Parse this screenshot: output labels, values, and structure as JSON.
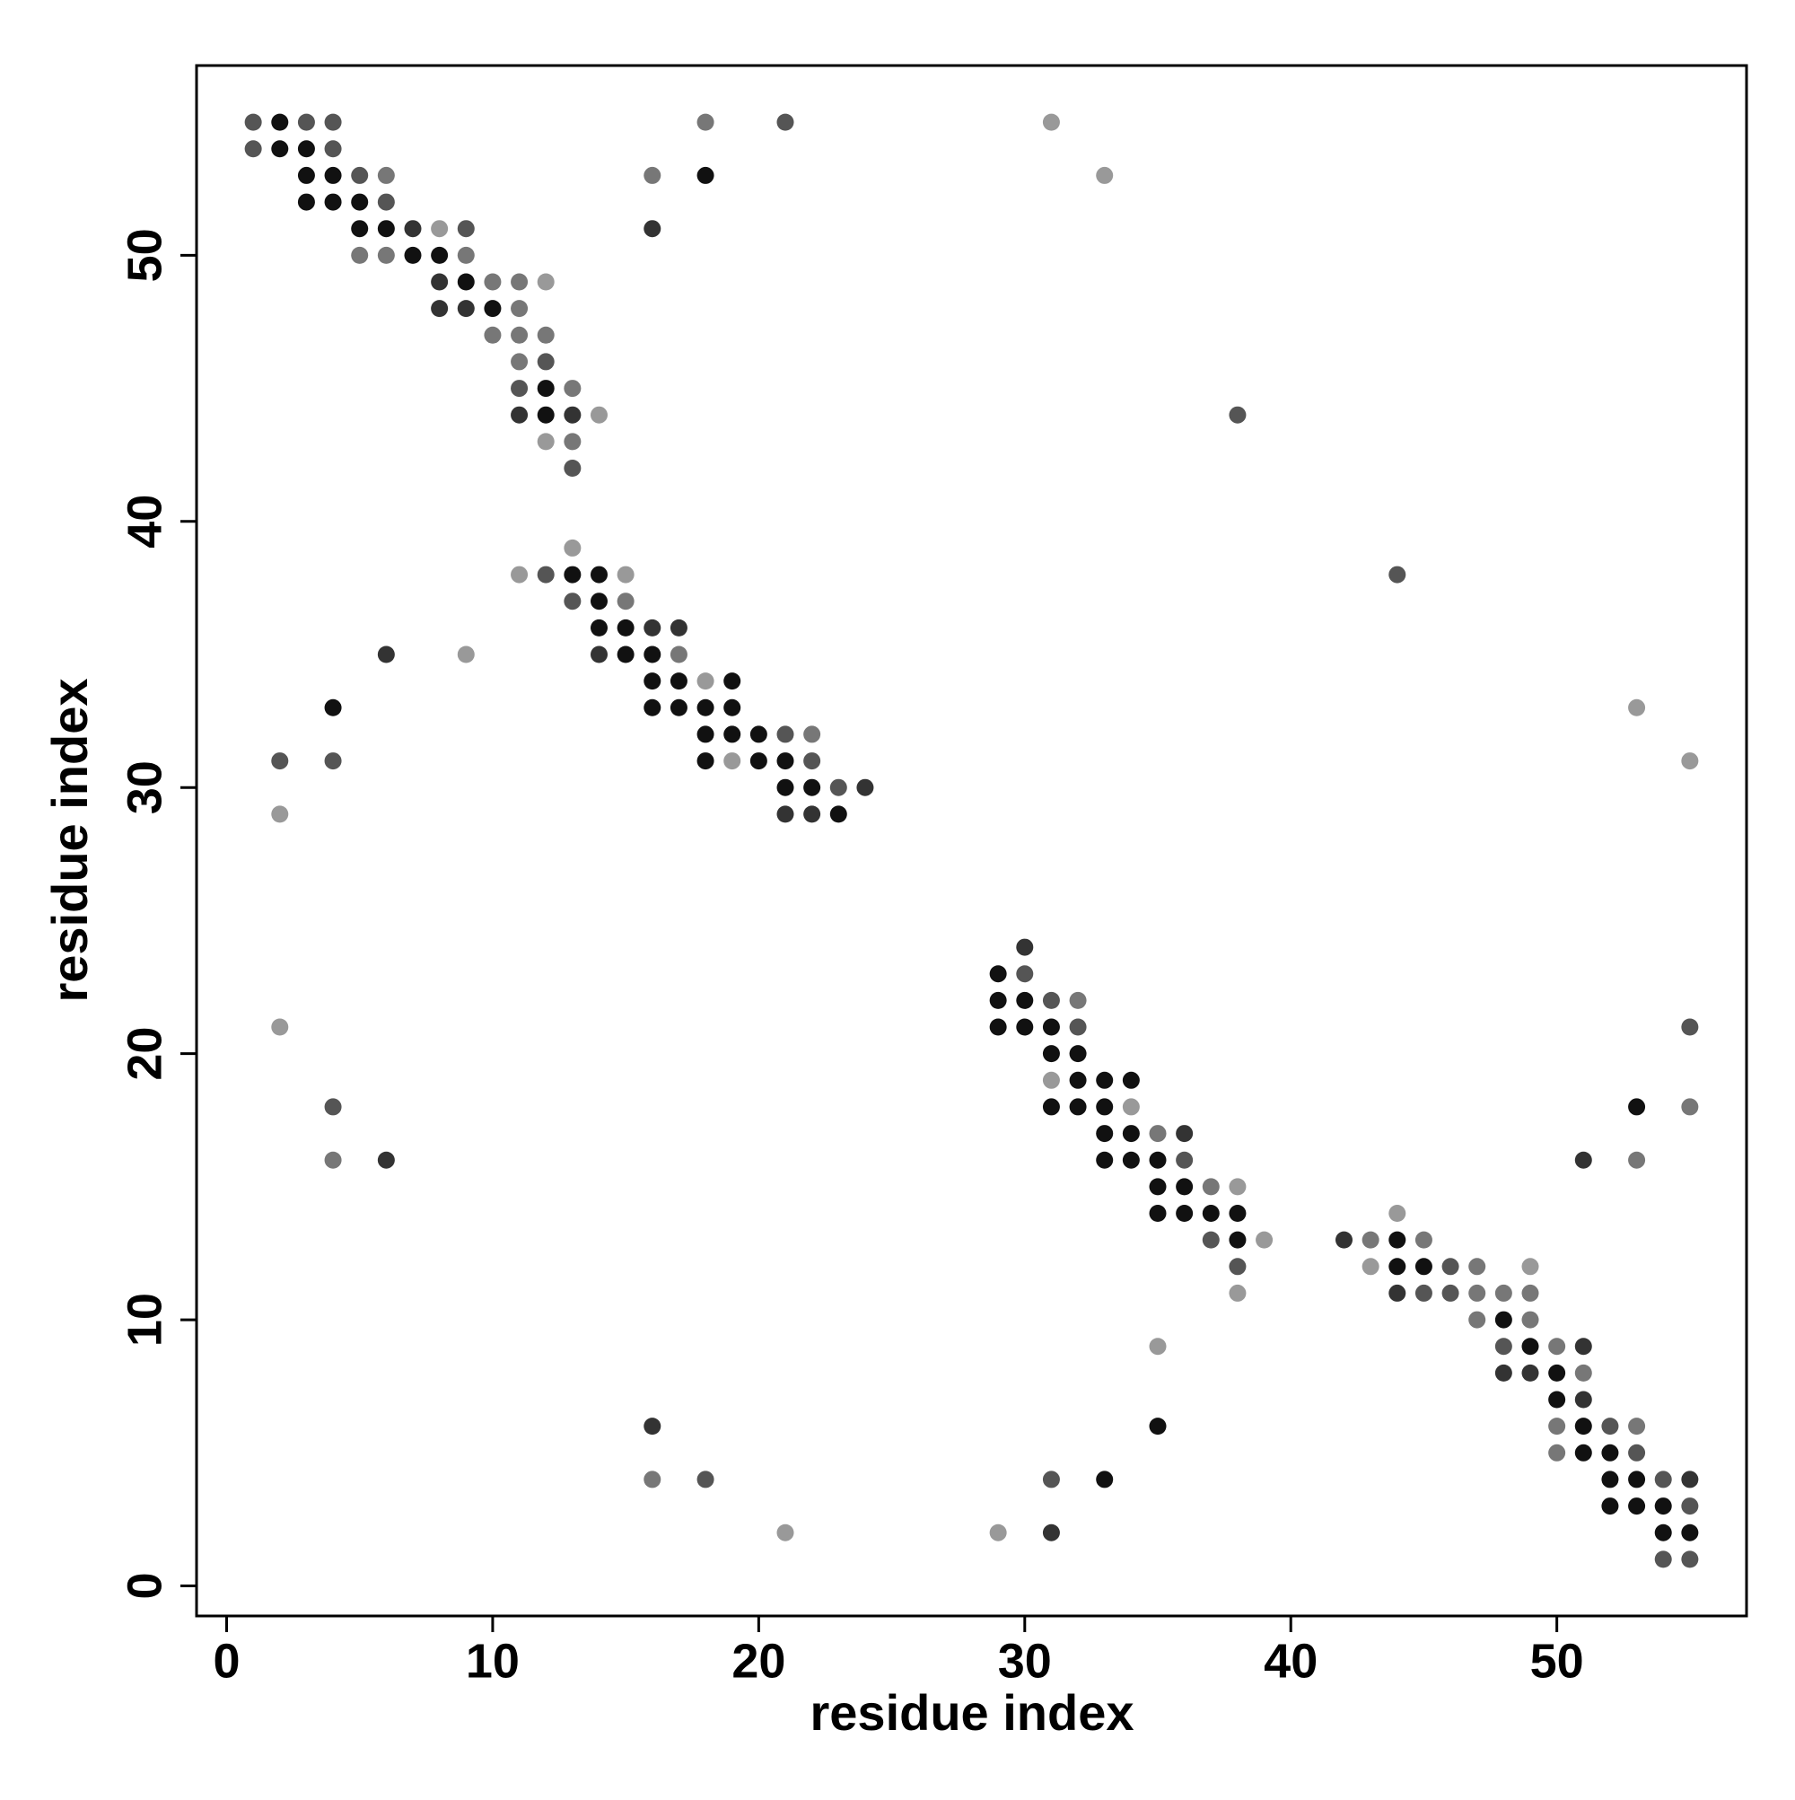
{
  "chart_data": {
    "type": "scatter",
    "xlabel": "residue index",
    "ylabel": "residue index",
    "xlim": [
      -1.13,
      57.13
    ],
    "ylim": [
      -1.13,
      57.13
    ],
    "xticks": [
      0,
      10,
      20,
      30,
      40,
      50
    ],
    "yticks": [
      0,
      10,
      20,
      30,
      40,
      50
    ],
    "x": [
      1,
      2,
      3,
      4,
      18,
      21,
      31,
      1,
      2,
      3,
      4,
      3,
      4,
      5,
      6,
      16,
      18,
      33,
      3,
      4,
      5,
      6,
      5,
      6,
      7,
      8,
      9,
      16,
      5,
      6,
      7,
      8,
      9,
      8,
      9,
      10,
      11,
      12,
      8,
      9,
      10,
      11,
      10,
      11,
      12,
      11,
      12,
      11,
      12,
      13,
      11,
      12,
      13,
      14,
      38,
      12,
      13,
      13,
      13,
      11,
      12,
      13,
      14,
      15,
      44,
      13,
      14,
      15,
      14,
      15,
      16,
      17,
      6,
      9,
      14,
      15,
      16,
      17,
      16,
      17,
      18,
      19,
      4,
      16,
      17,
      18,
      19,
      53,
      18,
      19,
      20,
      21,
      22,
      2,
      4,
      18,
      19,
      20,
      21,
      22,
      55,
      21,
      22,
      23,
      24,
      2,
      21,
      22,
      23,
      30,
      29,
      30,
      29,
      30,
      31,
      32,
      2,
      29,
      30,
      31,
      32,
      55,
      31,
      32,
      31,
      32,
      33,
      34,
      4,
      31,
      32,
      33,
      34,
      53,
      55,
      33,
      34,
      35,
      36,
      4,
      6,
      33,
      34,
      35,
      36,
      51,
      53,
      35,
      36,
      37,
      38,
      35,
      36,
      37,
      38,
      44,
      37,
      38,
      39,
      42,
      43,
      44,
      45,
      38,
      43,
      44,
      45,
      46,
      47,
      49,
      38,
      44,
      45,
      46,
      47,
      48,
      49,
      47,
      48,
      49,
      35,
      48,
      49,
      50,
      51,
      48,
      49,
      50,
      51,
      50,
      51,
      16,
      35,
      50,
      51,
      52,
      53,
      50,
      51,
      52,
      53,
      16,
      18,
      31,
      33,
      52,
      53,
      54,
      55,
      52,
      53,
      54,
      55,
      21,
      29,
      31,
      54,
      55,
      54,
      55
    ],
    "y": [
      55,
      55,
      55,
      55,
      55,
      55,
      55,
      54,
      54,
      54,
      54,
      53,
      53,
      53,
      53,
      53,
      53,
      53,
      52,
      52,
      52,
      52,
      51,
      51,
      51,
      51,
      51,
      51,
      50,
      50,
      50,
      50,
      50,
      49,
      49,
      49,
      49,
      49,
      48,
      48,
      48,
      48,
      47,
      47,
      47,
      46,
      46,
      45,
      45,
      45,
      44,
      44,
      44,
      44,
      44,
      43,
      43,
      42,
      39,
      38,
      38,
      38,
      38,
      38,
      38,
      37,
      37,
      37,
      36,
      36,
      36,
      36,
      35,
      35,
      35,
      35,
      35,
      35,
      34,
      34,
      34,
      34,
      33,
      33,
      33,
      33,
      33,
      33,
      32,
      32,
      32,
      32,
      32,
      31,
      31,
      31,
      31,
      31,
      31,
      31,
      31,
      30,
      30,
      30,
      30,
      29,
      29,
      29,
      29,
      24,
      23,
      23,
      22,
      22,
      22,
      22,
      21,
      21,
      21,
      21,
      21,
      21,
      20,
      20,
      19,
      19,
      19,
      19,
      18,
      18,
      18,
      18,
      18,
      18,
      18,
      17,
      17,
      17,
      17,
      16,
      16,
      16,
      16,
      16,
      16,
      16,
      16,
      15,
      15,
      15,
      15,
      14,
      14,
      14,
      14,
      14,
      13,
      13,
      13,
      13,
      13,
      13,
      13,
      12,
      12,
      12,
      12,
      12,
      12,
      12,
      11,
      11,
      11,
      11,
      11,
      11,
      11,
      10,
      10,
      10,
      9,
      9,
      9,
      9,
      9,
      8,
      8,
      8,
      8,
      7,
      7,
      6,
      6,
      6,
      6,
      6,
      6,
      5,
      5,
      5,
      5,
      4,
      4,
      4,
      4,
      4,
      4,
      4,
      4,
      3,
      3,
      3,
      3,
      2,
      2,
      2,
      2,
      2,
      1,
      1
    ],
    "colors": [
      "#555",
      "#111",
      "#555",
      "#555",
      "#777",
      "#555",
      "#999",
      "#555",
      "#111",
      "#111",
      "#555",
      "#111",
      "#111",
      "#555",
      "#777",
      "#777",
      "#111",
      "#999",
      "#111",
      "#111",
      "#111",
      "#555",
      "#111",
      "#111",
      "#333",
      "#999",
      "#555",
      "#333",
      "#777",
      "#777",
      "#111",
      "#111",
      "#777",
      "#333",
      "#111",
      "#777",
      "#777",
      "#999",
      "#333",
      "#333",
      "#111",
      "#777",
      "#777",
      "#777",
      "#777",
      "#777",
      "#555",
      "#555",
      "#111",
      "#777",
      "#333",
      "#111",
      "#333",
      "#999",
      "#555",
      "#999",
      "#777",
      "#555",
      "#999",
      "#999",
      "#555",
      "#111",
      "#111",
      "#999",
      "#555",
      "#555",
      "#111",
      "#777",
      "#111",
      "#111",
      "#333",
      "#333",
      "#333",
      "#999",
      "#333",
      "#111",
      "#111",
      "#777",
      "#111",
      "#111",
      "#999",
      "#111",
      "#111",
      "#111",
      "#111",
      "#111",
      "#111",
      "#999",
      "#111",
      "#111",
      "#111",
      "#555",
      "#777",
      "#555",
      "#555",
      "#111",
      "#999",
      "#111",
      "#111",
      "#555",
      "#999",
      "#111",
      "#111",
      "#555",
      "#333",
      "#999",
      "#333",
      "#333",
      "#111",
      "#333",
      "#111",
      "#555",
      "#111",
      "#111",
      "#555",
      "#777",
      "#999",
      "#111",
      "#111",
      "#111",
      "#555",
      "#555",
      "#111",
      "#111",
      "#999",
      "#111",
      "#111",
      "#111",
      "#555",
      "#111",
      "#111",
      "#111",
      "#999",
      "#111",
      "#777",
      "#111",
      "#111",
      "#777",
      "#333",
      "#777",
      "#333",
      "#111",
      "#111",
      "#111",
      "#555",
      "#333",
      "#777",
      "#111",
      "#111",
      "#777",
      "#999",
      "#111",
      "#111",
      "#111",
      "#111",
      "#999",
      "#555",
      "#111",
      "#999",
      "#333",
      "#777",
      "#111",
      "#777",
      "#555",
      "#999",
      "#111",
      "#111",
      "#555",
      "#777",
      "#999",
      "#999",
      "#333",
      "#555",
      "#555",
      "#777",
      "#777",
      "#777",
      "#777",
      "#111",
      "#777",
      "#999",
      "#555",
      "#111",
      "#777",
      "#333",
      "#333",
      "#333",
      "#111",
      "#777",
      "#111",
      "#333",
      "#333",
      "#111",
      "#777",
      "#111",
      "#555",
      "#777",
      "#777",
      "#111",
      "#111",
      "#555",
      "#777",
      "#555",
      "#555",
      "#111",
      "#111",
      "#111",
      "#555",
      "#333",
      "#111",
      "#111",
      "#111",
      "#555",
      "#999",
      "#999",
      "#333",
      "#111",
      "#111",
      "#555",
      "#555"
    ]
  }
}
